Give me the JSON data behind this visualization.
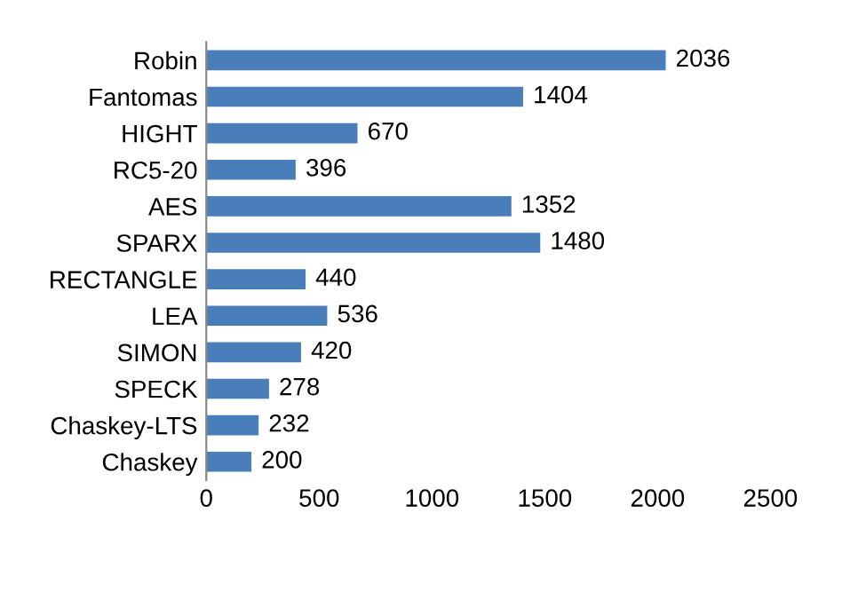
{
  "chart_data": {
    "type": "bar",
    "orientation": "horizontal",
    "categories": [
      "Robin",
      "Fantomas",
      "HIGHT",
      "RC5-20",
      "AES",
      "SPARX",
      "RECTANGLE",
      "LEA",
      "SIMON",
      "SPECK",
      "Chaskey-LTS",
      "Chaskey"
    ],
    "values": [
      2036,
      1404,
      670,
      396,
      1352,
      1480,
      440,
      536,
      420,
      278,
      232,
      200
    ],
    "color": "#4a7ebb",
    "xlim": [
      0,
      2500
    ],
    "xticks": [
      0,
      500,
      1000,
      1500,
      2000,
      2500
    ],
    "grid": false,
    "legend": false,
    "data_labels": true
  }
}
